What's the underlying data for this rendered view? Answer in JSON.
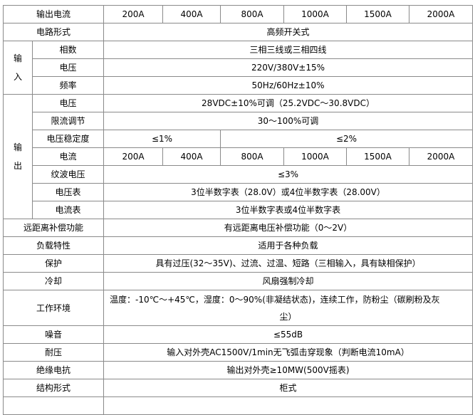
{
  "header": {
    "label": "输出电流",
    "currents": [
      "200A",
      "400A",
      "800A",
      "1000A",
      "1500A",
      "2000A"
    ]
  },
  "circuit": {
    "label": "电路形式",
    "value": "高频开关式"
  },
  "input": {
    "group_label_1": "输",
    "group_label_2": "入",
    "phase": {
      "label": "相数",
      "value": "三相三线或三相四线"
    },
    "voltage": {
      "label": "电压",
      "value": "220V/380V±15%"
    },
    "frequency": {
      "label": "频率",
      "value": "50Hz/60Hz±10%"
    }
  },
  "output": {
    "group_label_1": "输",
    "group_label_2": "出",
    "voltage": {
      "label": "电压",
      "value": "28VDC±10%可调（25.2VDC～30.8VDC）"
    },
    "current_limit": {
      "label": "限流调节",
      "value": "30～100%可调"
    },
    "stability": {
      "label": "电压稳定度",
      "value_low": "≤1%",
      "value_high": "≤2%"
    },
    "current": {
      "label": "电流",
      "values": [
        "200A",
        "400A",
        "800A",
        "1000A",
        "1500A",
        "2000A"
      ]
    },
    "ripple": {
      "label": "纹波电压",
      "value": "≤3%"
    },
    "voltmeter": {
      "label": "电压表",
      "value": "3位半数字表（28.0V）或4位半数字表（28.00V）"
    },
    "ammeter": {
      "label": "电流表",
      "value": "3位半数字表或4位半数字表"
    }
  },
  "rows": [
    {
      "label": "远距离补偿功能",
      "value": "有远距离电压补偿功能（0～2V）"
    },
    {
      "label": "负载特性",
      "value": "适用于各种负载"
    },
    {
      "label": "保护",
      "value": "具有过压(32～35V)、过流、过温、短路（三相输入，具有缺相保护）"
    },
    {
      "label": "冷却",
      "value": "风扇强制冷却"
    }
  ],
  "environment": {
    "label": "工作环境",
    "value_line1": "温度：-10℃～+45℃，湿度：0～90%(非凝结状态)，连续工作，防粉尘（碳刷粉及灰",
    "value_line2": "尘）"
  },
  "rows2": [
    {
      "label": "噪音",
      "value": "≤55dB"
    },
    {
      "label": "耐压",
      "value": "输入对外壳AC1500V/1min无飞弧击穿现象（判断电流10mA）"
    },
    {
      "label": "绝缘电抗",
      "value": "输出对外壳≥10MW(500V摇表)"
    },
    {
      "label": "结构形式",
      "value": "柜式"
    }
  ]
}
